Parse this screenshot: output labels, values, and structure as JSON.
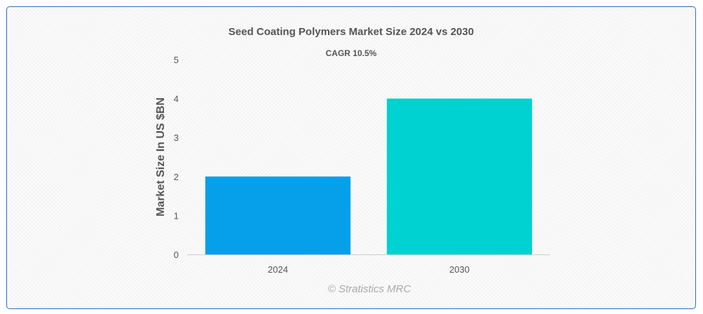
{
  "chart_data": {
    "type": "bar",
    "title": "Seed Coating Polymers Market Size 2024 vs 2030",
    "subtitle": "CAGR 10.5%",
    "xlabel": "",
    "ylabel": "Market Size In US $BN",
    "categories": [
      "2024",
      "2030"
    ],
    "values": [
      2,
      4
    ],
    "colors": [
      "#069fea",
      "#00d1d1"
    ],
    "ylim": [
      0,
      5
    ],
    "yticks": [
      "0",
      "1",
      "2",
      "3",
      "4",
      "5"
    ],
    "grid": false,
    "legend": "none"
  },
  "credit": "© Stratistics MRC",
  "colors": {
    "border": "#2f6fc0",
    "text": "#555555"
  }
}
